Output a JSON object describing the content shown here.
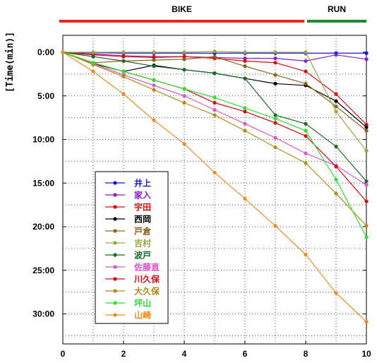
{
  "chart_data": {
    "type": "line",
    "ylabel": "[Time(min)]",
    "x": [
      0,
      1,
      2,
      3,
      4,
      5,
      6,
      7,
      8,
      9,
      10
    ],
    "xlim": [
      0,
      10
    ],
    "ylim": [
      0,
      33
    ],
    "y_inverted": true,
    "x_ticks": [
      "0",
      "2",
      "4",
      "6",
      "8",
      "10"
    ],
    "y_ticks": [
      {
        "v": 0,
        "label": "0:00"
      },
      {
        "v": 5,
        "label": "5:00"
      },
      {
        "v": 10,
        "label": "10:00"
      },
      {
        "v": 15,
        "label": "15:00"
      },
      {
        "v": 20,
        "label": "20:00"
      },
      {
        "v": 25,
        "label": "25:00"
      },
      {
        "v": 30,
        "label": "30:00"
      }
    ],
    "grid": true,
    "legend_position": "lower-left",
    "phases": [
      {
        "label": "BIKE",
        "from": 0,
        "to": 8,
        "color": "#e8251f"
      },
      {
        "label": "RUN",
        "from": 8,
        "to": 10,
        "color": "#1e8a2a"
      }
    ],
    "series": [
      {
        "name": "井上",
        "color": "#1414e0",
        "values": [
          0,
          0.05,
          0.1,
          0.1,
          0.1,
          0.1,
          0.1,
          0.1,
          0.1,
          0.1,
          0.1
        ]
      },
      {
        "name": "家入",
        "color": "#8a1ecc",
        "values": [
          0,
          0.2,
          0.4,
          0.5,
          0.5,
          0.6,
          0.7,
          0.7,
          1.0,
          0.3,
          0.8
        ]
      },
      {
        "name": "宇田",
        "color": "#e00a0a",
        "values": [
          0,
          0.3,
          0.5,
          0.6,
          0.5,
          0.7,
          1.0,
          1.2,
          2.2,
          4.8,
          8.3
        ]
      },
      {
        "name": "西岡",
        "color": "#000000",
        "values": [
          0,
          1.3,
          2.2,
          1.5,
          2.0,
          2.4,
          3.0,
          3.6,
          3.8,
          5.6,
          8.6
        ]
      },
      {
        "name": "戸倉",
        "color": "#8a6416",
        "values": [
          0,
          1.2,
          1.0,
          0.9,
          0.8,
          0.5,
          1.6,
          2.6,
          3.6,
          6.2,
          9.0
        ]
      },
      {
        "name": "吉村",
        "color": "#9aa63a",
        "values": [
          0,
          0,
          0,
          0,
          0,
          -0.1,
          0,
          0,
          0,
          6.8,
          11.3
        ]
      },
      {
        "name": "波戸",
        "color": "#1a6a2a",
        "values": [
          0,
          0.5,
          1.0,
          1.6,
          2.0,
          2.4,
          3.0,
          7.2,
          8.2,
          10.8,
          14.8
        ]
      },
      {
        "name": "佐藤直",
        "color": "#e054cc",
        "values": [
          0,
          1.3,
          2.6,
          3.8,
          5.0,
          6.6,
          8.2,
          9.8,
          11.6,
          13.0,
          15.2
        ]
      },
      {
        "name": "川久保",
        "color": "#d80a14",
        "values": [
          0,
          1.2,
          2.2,
          3.2,
          4.2,
          5.8,
          6.8,
          8.1,
          9.6,
          13.1,
          17.1
        ]
      },
      {
        "name": "大久保",
        "color": "#b08c14",
        "values": [
          0,
          1.4,
          2.8,
          4.3,
          5.8,
          7.2,
          9.0,
          10.9,
          12.7,
          16.2,
          19.9
        ]
      },
      {
        "name": "坪山",
        "color": "#2ee02e",
        "values": [
          0,
          1.2,
          2.2,
          3.2,
          4.2,
          5.2,
          6.4,
          7.6,
          9.0,
          14.6,
          21.2
        ]
      },
      {
        "name": "山崎",
        "color": "#f08a1e",
        "values": [
          0,
          2.2,
          4.8,
          7.8,
          10.5,
          13.8,
          16.8,
          19.9,
          23.2,
          27.6,
          30.9
        ]
      }
    ]
  }
}
